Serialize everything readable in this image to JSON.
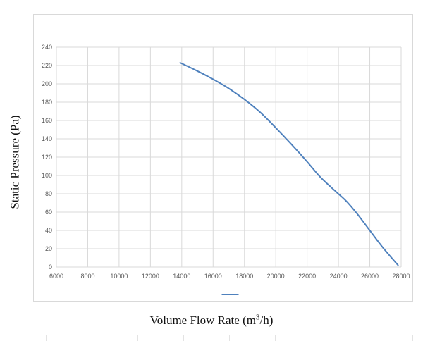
{
  "chart_data": {
    "type": "line",
    "title": "",
    "xlabel": {
      "prefix": "Volume Flow Rate (m",
      "sup": "3",
      "suffix": "/h)"
    },
    "ylabel": "Static Pressure (Pa)",
    "xlim": [
      6000,
      28000
    ],
    "ylim": [
      0,
      240
    ],
    "x_ticks": [
      6000,
      8000,
      10000,
      12000,
      14000,
      16000,
      18000,
      20000,
      22000,
      24000,
      26000,
      28000
    ],
    "y_ticks": [
      0,
      20,
      40,
      60,
      80,
      100,
      120,
      140,
      160,
      180,
      200,
      220,
      240
    ],
    "grid": true,
    "legend": "bottom",
    "series": [
      {
        "name": "",
        "color": "#4f81bd",
        "points": [
          [
            13900,
            223
          ],
          [
            15000,
            214
          ],
          [
            16000,
            205
          ],
          [
            17000,
            195
          ],
          [
            18000,
            183
          ],
          [
            19000,
            169
          ],
          [
            20000,
            152
          ],
          [
            21000,
            134
          ],
          [
            22000,
            115
          ],
          [
            22800,
            99
          ],
          [
            23600,
            86
          ],
          [
            24500,
            72
          ],
          [
            25200,
            58
          ],
          [
            26000,
            40
          ],
          [
            26800,
            22
          ],
          [
            27800,
            2
          ]
        ]
      }
    ]
  }
}
